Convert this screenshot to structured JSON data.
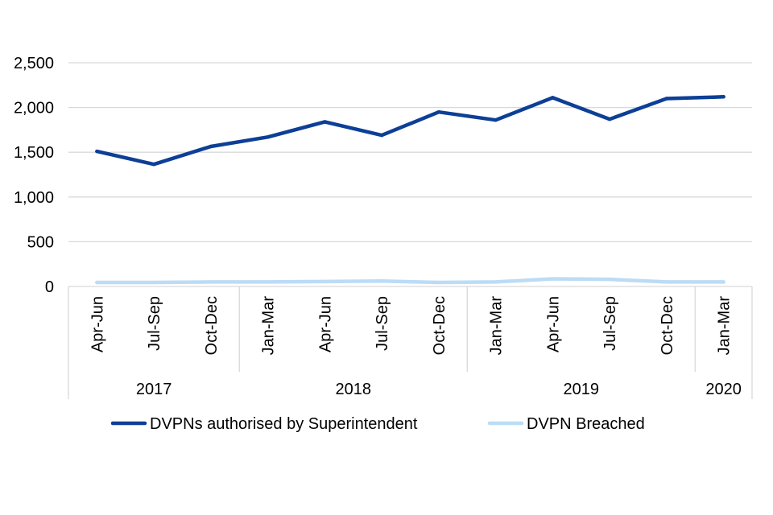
{
  "chart_data": {
    "type": "line",
    "title": "",
    "xlabel": "",
    "ylabel": "",
    "ylim": [
      0,
      2500
    ],
    "yticks": [
      0,
      500,
      1000,
      1500,
      2000,
      2500
    ],
    "ytick_labels": [
      "0",
      "500",
      "1,000",
      "1,500",
      "2,000",
      "2,500"
    ],
    "grid": true,
    "legend_position": "bottom",
    "categories": [
      "Apr-Jun",
      "Jul-Sep",
      "Oct-Dec",
      "Jan-Mar",
      "Apr-Jun",
      "Jul-Sep",
      "Oct-Dec",
      "Jan-Mar",
      "Apr-Jun",
      "Jul-Sep",
      "Oct-Dec",
      "Jan-Mar"
    ],
    "groups": [
      {
        "label": "2017",
        "count": 3
      },
      {
        "label": "2018",
        "count": 4
      },
      {
        "label": "2019",
        "count": 4
      },
      {
        "label": "2020",
        "count": 1
      }
    ],
    "series": [
      {
        "name": "DVPNs authorised by Superintendent",
        "color": "#0d3f96",
        "values": [
          1510,
          1365,
          1565,
          1670,
          1840,
          1690,
          1950,
          1860,
          2110,
          1870,
          2100,
          2120
        ]
      },
      {
        "name": "DVPN Breached",
        "color": "#bcdcf5",
        "values": [
          45,
          45,
          50,
          50,
          55,
          60,
          45,
          50,
          85,
          80,
          50,
          50
        ]
      }
    ]
  }
}
